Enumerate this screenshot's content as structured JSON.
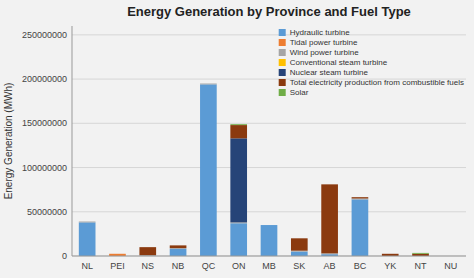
{
  "chart_data": {
    "type": "bar",
    "stacked": true,
    "title": "Energy Generation by Province and Fuel Type",
    "ylabel": "Energy Generation (MWh)",
    "categories": [
      "NL",
      "PEI",
      "NS",
      "NB",
      "QC",
      "ON",
      "MB",
      "SK",
      "AB",
      "BC",
      "YK",
      "NT",
      "NU"
    ],
    "series": [
      {
        "name": "Hydraulic turbine",
        "color": "#5B9BD5",
        "values": [
          38000000,
          0,
          0,
          8000000,
          194000000,
          37000000,
          35000000,
          5000000,
          2000000,
          64000000,
          0,
          0,
          0
        ]
      },
      {
        "name": "Tidal power turbine",
        "color": "#ED7D31",
        "values": [
          0,
          2500000,
          0,
          0,
          0,
          0,
          0,
          0,
          0,
          0,
          0,
          0,
          0
        ]
      },
      {
        "name": "Wind power turbine",
        "color": "#A5A5A5",
        "values": [
          1000000,
          0,
          1000000,
          1000000,
          1000000,
          1000000,
          0,
          1000000,
          1000000,
          1000000,
          0,
          0,
          0
        ]
      },
      {
        "name": "Conventional steam turbine",
        "color": "#FFC000",
        "values": [
          0,
          0,
          0,
          0,
          0,
          0,
          0,
          0,
          0,
          0,
          0,
          0,
          0
        ]
      },
      {
        "name": "Nuclear steam turbine",
        "color": "#264478",
        "values": [
          0,
          0,
          0,
          0,
          0,
          95000000,
          0,
          0,
          0,
          0,
          0,
          0,
          0
        ]
      },
      {
        "name": "Total electricity production from combustible fuels",
        "color": "#8B3A0F",
        "values": [
          0,
          0,
          9000000,
          3000000,
          0,
          15000000,
          0,
          14000000,
          78000000,
          1500000,
          2500000,
          2500000,
          0
        ]
      },
      {
        "name": "Solar",
        "color": "#70AD47",
        "values": [
          0,
          0,
          0,
          0,
          0,
          1000000,
          0,
          0,
          0,
          0,
          0,
          1000000,
          0
        ]
      }
    ],
    "ylim": [
      0,
      260000000
    ],
    "yticks": [
      0,
      50000000,
      100000000,
      150000000,
      200000000,
      250000000
    ],
    "grid": true,
    "legend": "upper right"
  }
}
